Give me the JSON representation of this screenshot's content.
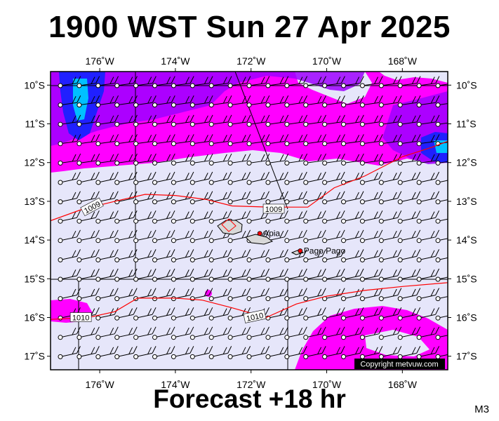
{
  "header": {
    "title": "1900 WST Sun 27 Apr 2025"
  },
  "footer": {
    "forecast": "Forecast +18 hr",
    "model": "M3"
  },
  "map": {
    "lon_range": [
      -177.3,
      -166.8
    ],
    "lat_range": [
      -17.35,
      -9.65
    ],
    "lon_ticks": [
      {
        "value": -176,
        "label": "176˚W"
      },
      {
        "value": -174,
        "label": "174˚W"
      },
      {
        "value": -172,
        "label": "172˚W"
      },
      {
        "value": -170,
        "label": "170˚W"
      },
      {
        "value": -168,
        "label": "168˚W"
      }
    ],
    "lat_ticks": [
      {
        "value": -10,
        "label": "10˚S"
      },
      {
        "value": -11,
        "label": "11˚S"
      },
      {
        "value": -12,
        "label": "12˚S"
      },
      {
        "value": -13,
        "label": "13˚S"
      },
      {
        "value": -14,
        "label": "14˚S"
      },
      {
        "value": -15,
        "label": "15˚S"
      },
      {
        "value": -16,
        "label": "16˚S"
      },
      {
        "value": -17,
        "label": "17˚S"
      }
    ],
    "places": [
      {
        "name": "Apia",
        "lon": -171.77,
        "lat": -13.83
      },
      {
        "name": "Pago Pago",
        "lon": -170.7,
        "lat": -14.28
      }
    ],
    "isobars": [
      {
        "label": "1009",
        "points": [
          [
            -177.3,
            -13.5
          ],
          [
            -176.5,
            -13.22
          ],
          [
            -175.6,
            -13.0
          ],
          [
            -174.8,
            -12.82
          ],
          [
            -174.0,
            -12.85
          ],
          [
            -173.2,
            -12.95
          ],
          [
            -172.5,
            -13.12
          ],
          [
            -171.5,
            -13.15
          ],
          [
            -170.5,
            -13.15
          ],
          [
            -169.8,
            -12.65
          ],
          [
            -169.0,
            -12.35
          ],
          [
            -168.0,
            -11.85
          ],
          [
            -167.2,
            -11.6
          ],
          [
            -166.8,
            -11.45
          ]
        ]
      },
      {
        "label": "1010",
        "points": [
          [
            -177.3,
            -16.05
          ],
          [
            -176.3,
            -16.0
          ],
          [
            -175.6,
            -15.85
          ],
          [
            -175.0,
            -15.5
          ],
          [
            -174.0,
            -15.5
          ],
          [
            -173.3,
            -15.55
          ],
          [
            -172.5,
            -15.75
          ],
          [
            -171.6,
            -16.0
          ],
          [
            -170.8,
            -15.65
          ],
          [
            -170.0,
            -15.45
          ],
          [
            -169.0,
            -15.3
          ],
          [
            -168.0,
            -15.2
          ],
          [
            -166.8,
            -15.1
          ]
        ]
      }
    ],
    "colors": {
      "background": "#e6e6fa",
      "rain_light": "#ff00ff",
      "rain_medium": "#9e00ff",
      "rain_heavy": "#2020ff",
      "rain_extreme": "#00c0ff",
      "isobar": "#ff0000"
    },
    "copyright": "Copyright metvuw.com"
  }
}
